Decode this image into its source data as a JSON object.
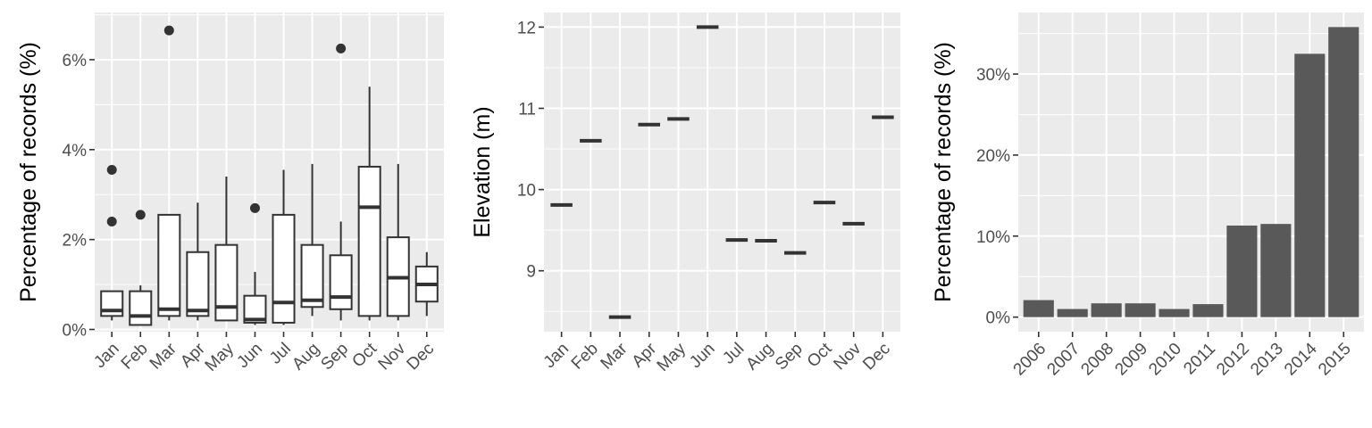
{
  "colors": {
    "panel_background": "#ebebeb",
    "gridline": "#ffffff",
    "box_fill": "#ffffff",
    "box_stroke": "#333333",
    "bar_fill": "#595959",
    "tick_text": "#4d4d4d"
  },
  "chart_data": [
    {
      "type": "box",
      "ylabel": "Percentage of records (%)",
      "xlabel": "",
      "ylim": [
        -0.0005,
        0.0705
      ],
      "yticks": [
        0,
        0.02,
        0.04,
        0.06
      ],
      "yticklabels": [
        "0%",
        "2%",
        "4%",
        "6%"
      ],
      "grid": true,
      "categories": [
        "Jan",
        "Feb",
        "Mar",
        "Apr",
        "May",
        "Jun",
        "Jul",
        "Aug",
        "Sep",
        "Oct",
        "Nov",
        "Dec"
      ],
      "boxes": [
        {
          "min": 0.002,
          "q1": 0.003,
          "median": 0.0042,
          "q3": 0.0085,
          "max": 0.0085,
          "outliers": [
            0.024,
            0.0355
          ]
        },
        {
          "min": 0.001,
          "q1": 0.001,
          "median": 0.003,
          "q3": 0.0085,
          "max": 0.0098,
          "outliers": [
            0.0255
          ]
        },
        {
          "min": 0.002,
          "q1": 0.003,
          "median": 0.0045,
          "q3": 0.0255,
          "max": 0.0255,
          "outliers": [
            0.0665
          ]
        },
        {
          "min": 0.002,
          "q1": 0.003,
          "median": 0.0042,
          "q3": 0.0172,
          "max": 0.0282,
          "outliers": []
        },
        {
          "min": 0.002,
          "q1": 0.002,
          "median": 0.005,
          "q3": 0.0188,
          "max": 0.034,
          "outliers": []
        },
        {
          "min": 0.001,
          "q1": 0.0015,
          "median": 0.0022,
          "q3": 0.0075,
          "max": 0.0128,
          "outliers": [
            0.027
          ]
        },
        {
          "min": 0.001,
          "q1": 0.0015,
          "median": 0.006,
          "q3": 0.0255,
          "max": 0.0355,
          "outliers": []
        },
        {
          "min": 0.003,
          "q1": 0.005,
          "median": 0.0065,
          "q3": 0.0188,
          "max": 0.0368,
          "outliers": []
        },
        {
          "min": 0.002,
          "q1": 0.0045,
          "median": 0.0072,
          "q3": 0.0165,
          "max": 0.024,
          "outliers": [
            0.0625
          ]
        },
        {
          "min": 0.002,
          "q1": 0.003,
          "median": 0.0272,
          "q3": 0.0362,
          "max": 0.054,
          "outliers": []
        },
        {
          "min": 0.002,
          "q1": 0.003,
          "median": 0.0115,
          "q3": 0.0205,
          "max": 0.0368,
          "outliers": []
        },
        {
          "min": 0.003,
          "q1": 0.0062,
          "median": 0.01,
          "q3": 0.014,
          "max": 0.0172,
          "outliers": []
        }
      ]
    },
    {
      "type": "box",
      "ylabel": "Elevation (m)",
      "xlabel": "",
      "ylim": [
        8.25,
        12.18
      ],
      "yticks": [
        9,
        10,
        11,
        12
      ],
      "yticklabels": [
        "9",
        "10",
        "11",
        "12"
      ],
      "grid": true,
      "categories": [
        "Jan",
        "Feb",
        "Mar",
        "Apr",
        "May",
        "Jun",
        "Jul",
        "Aug",
        "Sep",
        "Oct",
        "Nov",
        "Dec"
      ],
      "values": [
        9.81,
        10.6,
        8.43,
        10.8,
        10.87,
        12.0,
        9.38,
        9.37,
        9.22,
        9.84,
        9.58,
        10.89
      ]
    },
    {
      "type": "bar",
      "ylabel": "Percentage of records (%)",
      "xlabel": "",
      "ylim": [
        -0.018,
        0.376
      ],
      "yticks": [
        0,
        0.1,
        0.2,
        0.3
      ],
      "yticklabels": [
        "0%",
        "10%",
        "20%",
        "30%"
      ],
      "grid": true,
      "categories": [
        "2006",
        "2007",
        "2008",
        "2009",
        "2010",
        "2011",
        "2012",
        "2013",
        "2014",
        "2015"
      ],
      "values": [
        0.021,
        0.01,
        0.017,
        0.017,
        0.01,
        0.016,
        0.113,
        0.115,
        0.325,
        0.358
      ]
    }
  ]
}
